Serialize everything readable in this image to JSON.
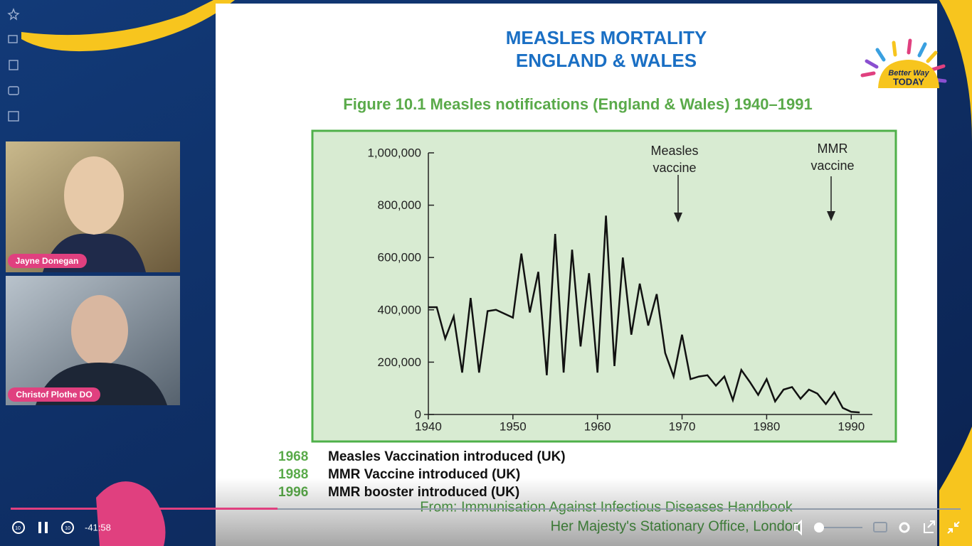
{
  "slide": {
    "title_lines": [
      "MEASLES MORTALITY",
      "ENGLAND & WALES"
    ],
    "notes": [
      {
        "year": "1968",
        "text": "Measles Vaccination introduced (UK)"
      },
      {
        "year": "1988",
        "text": "MMR Vaccine introduced (UK)"
      },
      {
        "year": "1996",
        "text": "MMR booster introduced (UK)"
      }
    ],
    "source_lines": [
      "From: Immunisation Against Infectious Diseases Handbook",
      "Her Majesty's Stationary Office, London"
    ]
  },
  "chart_data": {
    "type": "line",
    "title": "Figure 10.1  Measles notifications (England & Wales) 1940–1991",
    "x": [
      1940,
      1941,
      1942,
      1943,
      1944,
      1945,
      1946,
      1947,
      1948,
      1949,
      1950,
      1951,
      1952,
      1953,
      1954,
      1955,
      1956,
      1957,
      1958,
      1959,
      1960,
      1961,
      1962,
      1963,
      1964,
      1965,
      1966,
      1967,
      1968,
      1969,
      1970,
      1971,
      1972,
      1973,
      1974,
      1975,
      1976,
      1977,
      1978,
      1979,
      1980,
      1981,
      1982,
      1983,
      1984,
      1985,
      1986,
      1987,
      1988,
      1989,
      1990,
      1991
    ],
    "values": [
      410000,
      410000,
      290000,
      375000,
      160000,
      445000,
      160000,
      395000,
      400000,
      385000,
      370000,
      615000,
      390000,
      545000,
      150000,
      690000,
      160000,
      630000,
      260000,
      540000,
      160000,
      760000,
      185000,
      600000,
      305000,
      500000,
      340000,
      460000,
      235000,
      145000,
      305000,
      135000,
      145000,
      150000,
      110000,
      145000,
      55000,
      170000,
      125000,
      75000,
      135000,
      50000,
      95000,
      105000,
      60000,
      95000,
      80000,
      40000,
      85000,
      25000,
      10000,
      8000
    ],
    "color": "#111111",
    "xlim": [
      1939.5,
      1992.5
    ],
    "ylim": [
      0,
      1000000
    ],
    "xticks": [
      1940,
      1950,
      1960,
      1970,
      1980,
      1990
    ],
    "yticks": [
      0,
      {
        "value": 200000,
        "label": "200,000"
      },
      {
        "value": 400000,
        "label": "400,000"
      },
      {
        "value": 600000,
        "label": "600,000"
      },
      {
        "value": 800000,
        "label": "800,000"
      },
      {
        "value": 1000000,
        "label": "1,000,000"
      }
    ],
    "annotations": [
      {
        "lines": [
          "Measles",
          "vaccine"
        ]
      },
      {
        "lines": [
          "MMR",
          "vaccine"
        ]
      }
    ]
  },
  "participants": [
    "Jayne Donegan",
    "Christof Plothe DO"
  ],
  "logo": {
    "lines": [
      "Better Way",
      "TODAY"
    ]
  },
  "player": {
    "time_remaining": "-41:58"
  }
}
